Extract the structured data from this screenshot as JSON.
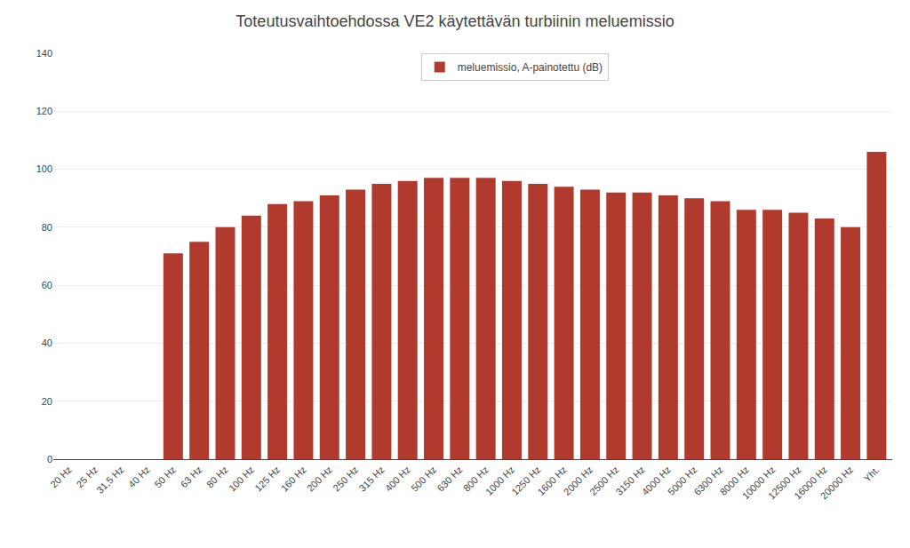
{
  "chart_data": {
    "type": "bar",
    "title": "Toteutusvaihtoehdossa VE2 käytettävän turbiinin meluemissio",
    "categories": [
      "20 Hz",
      "25 Hz",
      "31,5 Hz",
      "40 Hz",
      "50 Hz",
      "63 Hz",
      "80 Hz",
      "100 Hz",
      "125 Hz",
      "160 Hz",
      "200 Hz",
      "250 Hz",
      "315 Hz",
      "400 Hz",
      "500 Hz",
      "630 Hz",
      "800 Hz",
      "1000 Hz",
      "1250 Hz",
      "1600 Hz",
      "2000 Hz",
      "2500 Hz",
      "3150 Hz",
      "4000 Hz",
      "5000 Hz",
      "6300 Hz",
      "8000 Hz",
      "10000 Hz",
      "12500 Hz",
      "16000 Hz",
      "20000 Hz",
      "Yht."
    ],
    "series": [
      {
        "name": "meluemissio, A-painotettu (dB)",
        "color": "#b03a2e",
        "values": [
          0,
          0,
          0,
          0,
          71,
          75,
          80,
          84,
          88,
          89,
          91,
          93,
          95,
          96,
          97,
          97,
          97,
          96,
          95,
          94,
          93,
          92,
          92,
          91,
          90,
          89,
          86,
          86,
          85,
          83,
          80,
          106
        ]
      }
    ],
    "ylim": [
      0,
      140
    ],
    "yticks": [
      0,
      20,
      40,
      60,
      80,
      100,
      120,
      140
    ],
    "grid": true,
    "legend": "upper center"
  }
}
